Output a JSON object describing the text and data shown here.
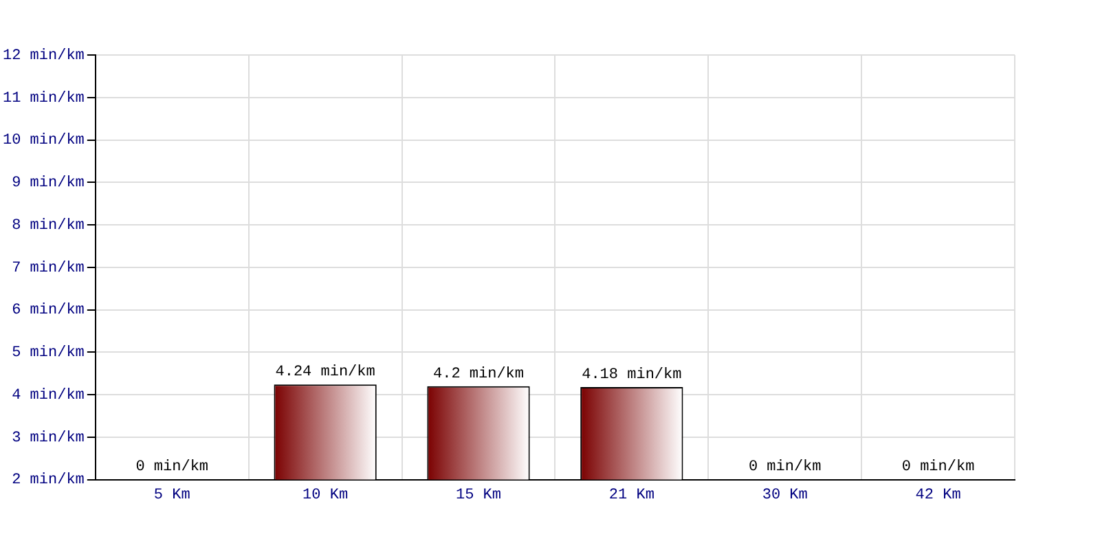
{
  "chart_data": {
    "type": "bar",
    "categories": [
      "5 Km",
      "10 Km",
      "15 Km",
      "21 Km",
      "30 Km",
      "42 Km"
    ],
    "values": [
      null,
      4.24,
      4.2,
      4.18,
      null,
      null
    ],
    "value_labels": [
      "0 min/km",
      "4.24 min/km",
      "4.2 min/km",
      "4.18 min/km",
      "0 min/km",
      "0 min/km"
    ],
    "color": "#7a0000",
    "ylim": [
      2,
      12
    ],
    "yticks": [
      {
        "value": 2,
        "label": "2 min/km"
      },
      {
        "value": 3,
        "label": "3 min/km"
      },
      {
        "value": 4,
        "label": "4 min/km"
      },
      {
        "value": 5,
        "label": "5 min/km"
      },
      {
        "value": 6,
        "label": "6 min/km"
      },
      {
        "value": 7,
        "label": "7 min/km"
      },
      {
        "value": 8,
        "label": "8 min/km"
      },
      {
        "value": 9,
        "label": "9 min/km"
      },
      {
        "value": 10,
        "label": "10 min/km"
      },
      {
        "value": 11,
        "label": "11 min/km"
      },
      {
        "value": 12,
        "label": "12 min/km"
      }
    ],
    "grid": true
  }
}
